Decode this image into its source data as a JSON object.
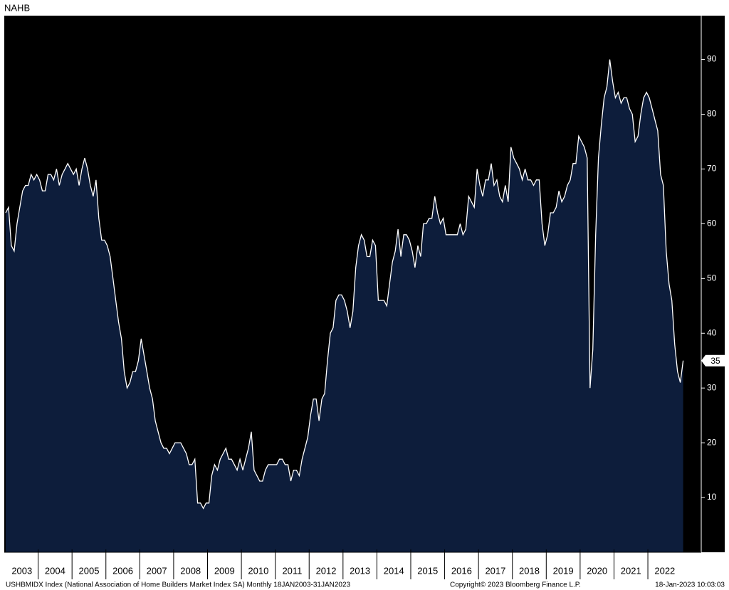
{
  "chart_data": {
    "type": "area",
    "title": "NAHB",
    "footer_left": "USHBMIDX Index (National Association of Home Builders Market Index SA)  Monthly 18JAN2003-31JAN2023",
    "footer_center": "Copyright© 2023 Bloomberg Finance L.P.",
    "footer_right": "18-Jan-2023 10:03:03",
    "xticks": [
      2003,
      2004,
      2005,
      2006,
      2007,
      2008,
      2009,
      2010,
      2011,
      2012,
      2013,
      2014,
      2015,
      2016,
      2017,
      2018,
      2019,
      2020,
      2021,
      2022
    ],
    "values": [
      62,
      63,
      56,
      55,
      60,
      63,
      66,
      67,
      67,
      69,
      68,
      69,
      68,
      66,
      66,
      69,
      69,
      68,
      70,
      67,
      69,
      70,
      71,
      70,
      69,
      70,
      67,
      70,
      72,
      70,
      67,
      65,
      68,
      61,
      57,
      57,
      56,
      54,
      50,
      46,
      42,
      39,
      33,
      30,
      31,
      33,
      33,
      35,
      39,
      36,
      33,
      30,
      28,
      24,
      22,
      20,
      19,
      19,
      18,
      19,
      20,
      20,
      20,
      19,
      18,
      16,
      16,
      17,
      9,
      9,
      8,
      9,
      9,
      14,
      16,
      15,
      17,
      18,
      19,
      17,
      17,
      16,
      15,
      17,
      15,
      17,
      19,
      22,
      15,
      14,
      13,
      13,
      15,
      16,
      16,
      16,
      16,
      17,
      17,
      16,
      16,
      13,
      15,
      15,
      14,
      17,
      19,
      21,
      25,
      28,
      28,
      24,
      28,
      29,
      35,
      40,
      41,
      46,
      47,
      47,
      46,
      44,
      41,
      44,
      52,
      56,
      58,
      57,
      54,
      54,
      57,
      56,
      46,
      46,
      46,
      45,
      49,
      53,
      55,
      59,
      54,
      58,
      58,
      57,
      55,
      52,
      56,
      54,
      60,
      60,
      61,
      61,
      65,
      62,
      60,
      61,
      58,
      58,
      58,
      58,
      58,
      60,
      58,
      59,
      65,
      64,
      63,
      70,
      67,
      65,
      68,
      68,
      71,
      67,
      68,
      65,
      64,
      67,
      64,
      74,
      72,
      71,
      70,
      68,
      70,
      68,
      68,
      67,
      68,
      68,
      60,
      56,
      58,
      62,
      62,
      63,
      66,
      64,
      65,
      67,
      68,
      71,
      71,
      76,
      75,
      74,
      72,
      30,
      37,
      58,
      72,
      78,
      83,
      85,
      90,
      86,
      83,
      84,
      82,
      83,
      83,
      81,
      80,
      75,
      76,
      80,
      83,
      84,
      83,
      81,
      79,
      77,
      69,
      67,
      55,
      49,
      46,
      38,
      33,
      31,
      35
    ],
    "color": "#0d1d3b",
    "line_color": "#ffffff",
    "ylim": [
      0,
      98
    ],
    "yticks": [
      10,
      20,
      30,
      40,
      50,
      60,
      70,
      80,
      90
    ]
  }
}
